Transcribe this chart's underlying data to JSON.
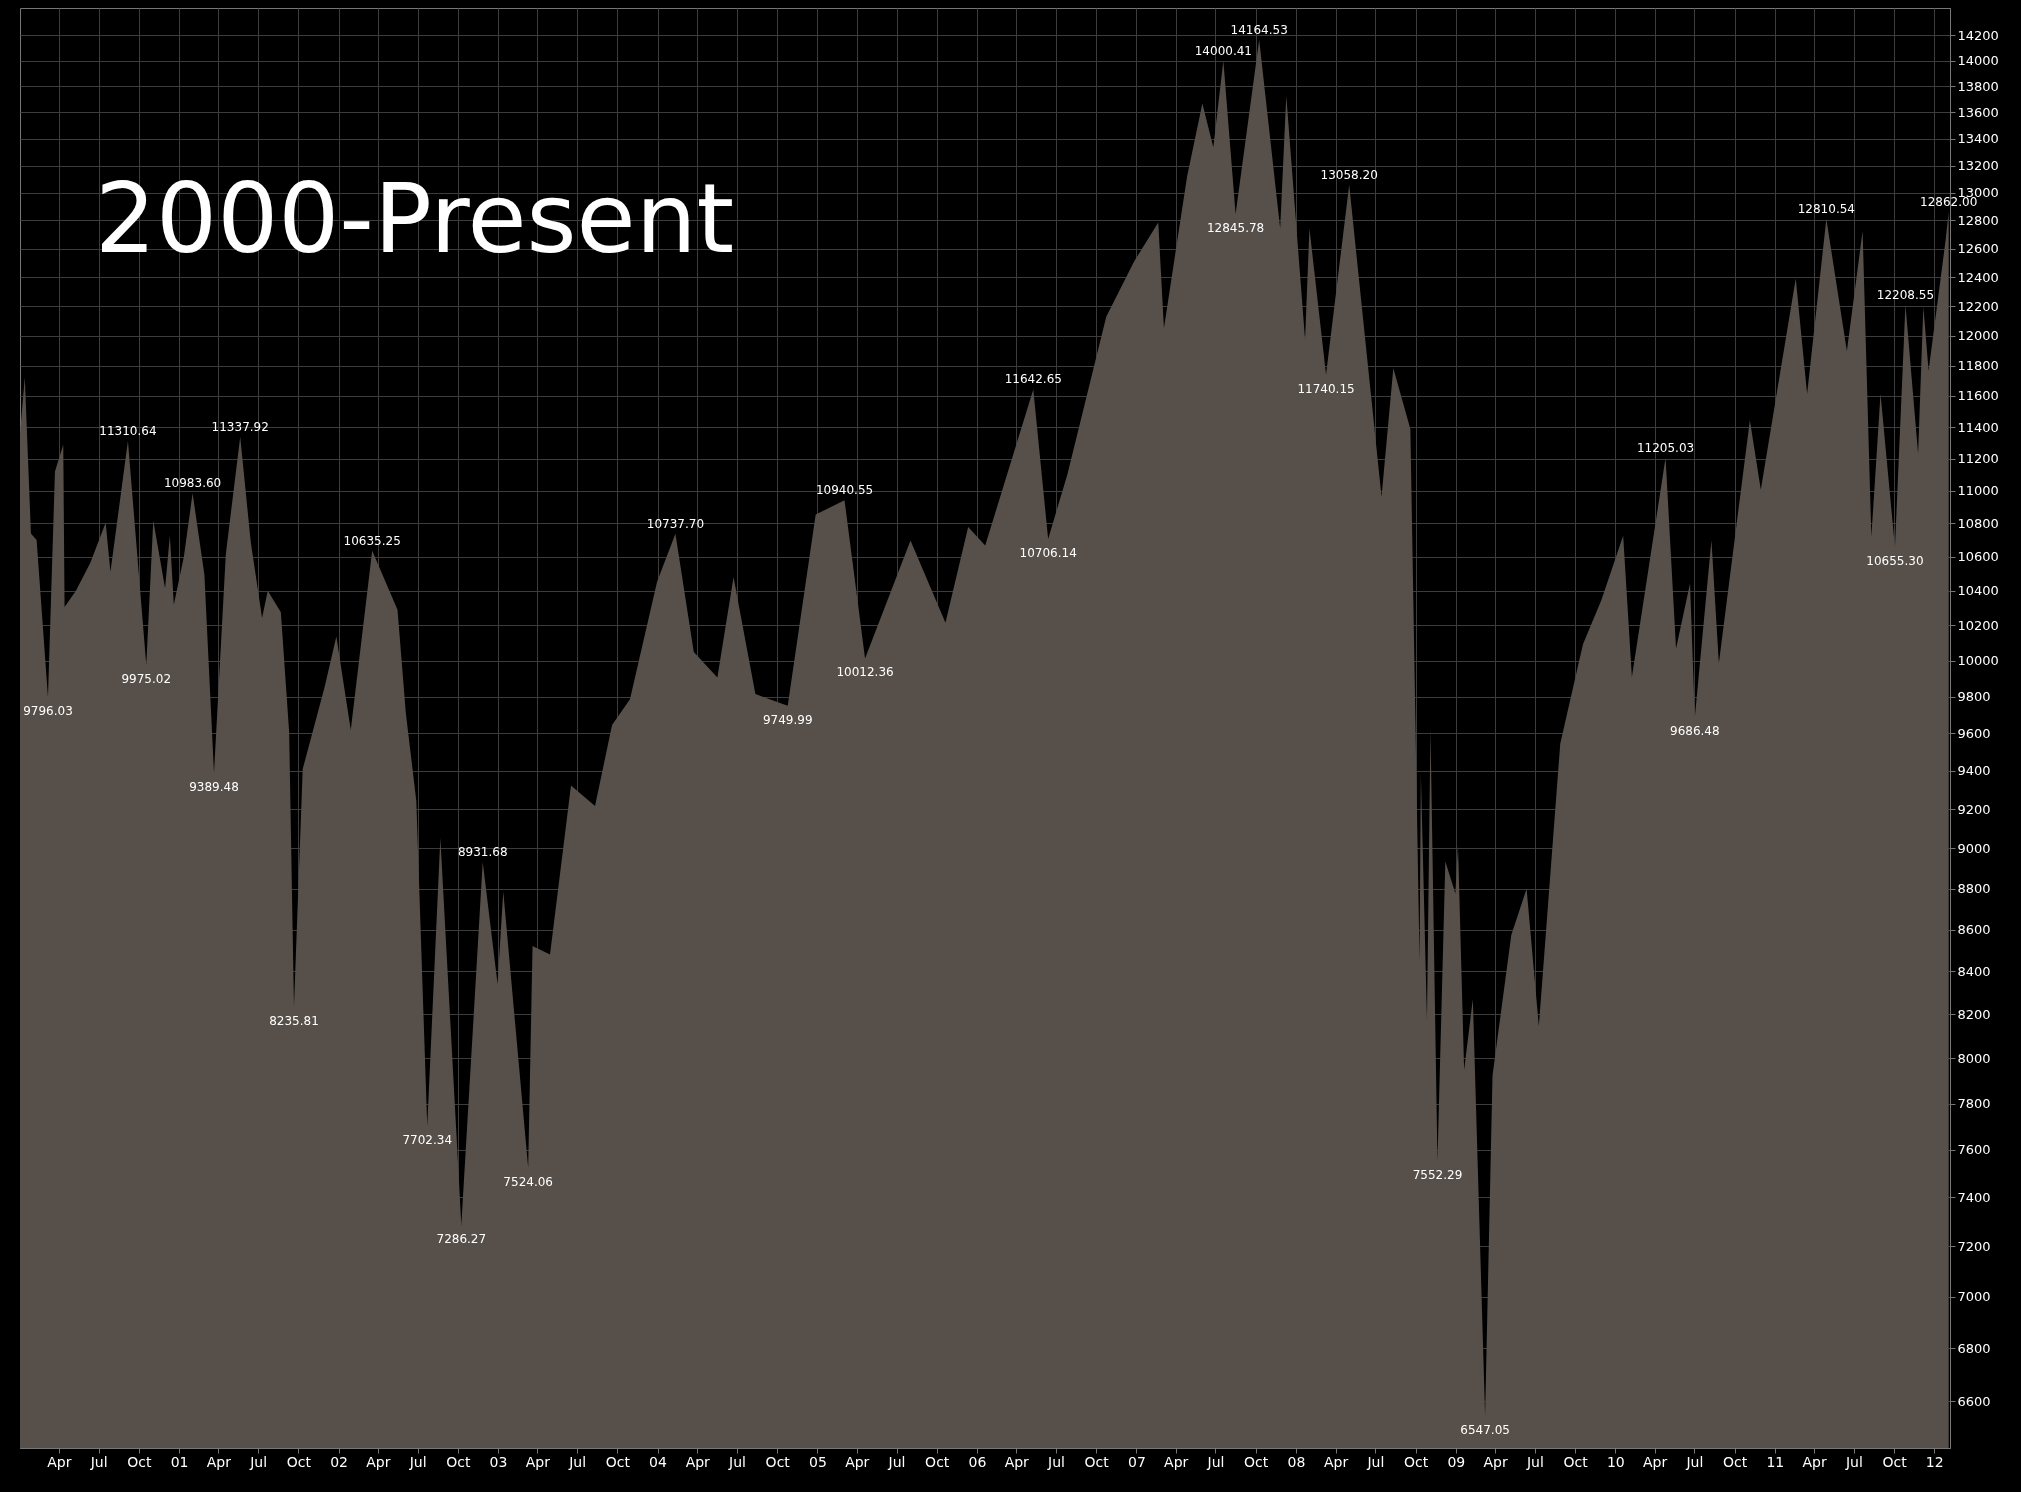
{
  "chart_data": {
    "type": "area",
    "title": "2000-Present",
    "x": [
      "2000-01-03",
      "2000-01-14",
      "2000-01-28",
      "2000-02-10",
      "2000-03-07",
      "2000-03-23",
      "2000-04-11",
      "2000-04-14",
      "2000-05-10",
      "2000-06-12",
      "2000-07-17",
      "2000-07-28",
      "2000-09-06",
      "2000-10-18",
      "2000-11-03",
      "2000-11-30",
      "2000-12-11",
      "2000-12-20",
      "2001-01-12",
      "2001-02-01",
      "2001-02-28",
      "2001-03-22",
      "2001-04-18",
      "2001-05-21",
      "2001-06-14",
      "2001-07-10",
      "2001-07-23",
      "2001-08-22",
      "2001-09-10",
      "2001-09-21",
      "2001-10-11",
      "2001-11-30",
      "2001-12-27",
      "2002-01-29",
      "2002-03-19",
      "2002-05-16",
      "2002-06-04",
      "2002-06-28",
      "2002-07-23",
      "2002-08-22",
      "2002-09-30",
      "2002-10-09",
      "2002-11-27",
      "2002-12-31",
      "2003-01-13",
      "2003-03-11",
      "2003-03-21",
      "2003-04-30",
      "2003-06-17",
      "2003-08-11",
      "2003-09-19",
      "2003-10-30",
      "2003-12-31",
      "2004-02-11",
      "2004-03-24",
      "2004-05-17",
      "2004-06-23",
      "2004-08-12",
      "2004-10-25",
      "2004-12-28",
      "2005-03-04",
      "2005-04-20",
      "2005-08-02",
      "2005-10-21",
      "2005-12-12",
      "2006-01-20",
      "2006-05-10",
      "2006-06-13",
      "2006-07-27",
      "2006-10-24",
      "2006-12-27",
      "2007-02-20",
      "2007-03-05",
      "2007-04-27",
      "2007-06-01",
      "2007-06-26",
      "2007-07-19",
      "2007-08-16",
      "2007-10-09",
      "2007-11-26",
      "2007-12-10",
      "2008-01-22",
      "2008-02-01",
      "2008-03-10",
      "2008-05-02",
      "2008-07-15",
      "2008-08-11",
      "2008-09-19",
      "2008-10-10",
      "2008-10-13",
      "2008-10-27",
      "2008-11-04",
      "2008-11-20",
      "2008-12-08",
      "2008-12-31",
      "2009-01-06",
      "2009-01-20",
      "2009-02-09",
      "2009-03-09",
      "2009-03-26",
      "2009-05-08",
      "2009-06-12",
      "2009-07-10",
      "2009-08-28",
      "2009-10-19",
      "2009-11-30",
      "2010-01-19",
      "2010-02-08",
      "2010-04-26",
      "2010-05-20",
      "2010-06-21",
      "2010-07-02",
      "2010-08-09",
      "2010-08-26",
      "2010-11-05",
      "2010-11-30",
      "2011-02-18",
      "2011-03-16",
      "2011-04-29",
      "2011-06-15",
      "2011-07-21",
      "2011-08-10",
      "2011-08-31",
      "2011-10-03",
      "2011-10-27",
      "2011-11-25",
      "2011-12-07",
      "2011-12-19",
      "2012-01-27",
      "2012-02-03"
    ],
    "series": [
      {
        "color": "#57504a",
        "values": [
          11357,
          11723,
          10739,
          10700,
          9796.03,
          11119,
          11287,
          10305,
          10400,
          10564,
          10804,
          10511,
          11310.64,
          9975.02,
          10817,
          10414,
          10725,
          10318,
          10600,
          10983.6,
          10495,
          9389.48,
          10615,
          11337.92,
          10690,
          10242,
          10400,
          10275,
          9606,
          8235.81,
          9410,
          9852,
          10136,
          9618,
          10635.25,
          10289,
          9711,
          9243,
          7702.34,
          9053,
          7592,
          7286.27,
          8931.68,
          8341,
          8785,
          7524.06,
          8521,
          8480,
          9323,
          9217,
          9645,
          9786,
          10453,
          10737.7,
          10048,
          9906,
          10479,
          9814,
          9749.99,
          10854,
          10940.55,
          10012.36,
          10697,
          10215,
          10778,
          10667,
          11642.65,
          10706.14,
          11100,
          12127,
          12510,
          12786,
          12050,
          13120,
          13668,
          13337,
          14000.41,
          12845.78,
          14164.53,
          12743,
          13727,
          11971,
          12743,
          11740.15,
          13058.2,
          10962,
          11782,
          11388,
          8451,
          9387,
          8175,
          9625,
          7552.29,
          8934,
          8776,
          9015,
          7949,
          8270,
          6547.05,
          7924,
          8574,
          8799,
          8146,
          9544,
          10092,
          10345,
          10725,
          9908,
          11205.03,
          10068,
          10442,
          9686.48,
          10698,
          9985,
          11444,
          11006,
          12391,
          11613,
          12810.54,
          11897,
          12724,
          10719,
          11614,
          10655.3,
          12208.55,
          11231,
          12196,
          11766,
          12660,
          12862
        ]
      }
    ],
    "annotations": [
      {
        "text": "9796.03",
        "x": "2000-03-07",
        "y": 9796.03
      },
      {
        "text": "11310.64",
        "x": "2000-09-06",
        "y": 11310.64
      },
      {
        "text": "9975.02",
        "x": "2000-10-18",
        "y": 9975.02
      },
      {
        "text": "10983.60",
        "x": "2001-02-01",
        "y": 10983.6
      },
      {
        "text": "9389.48",
        "x": "2001-03-22",
        "y": 9389.48
      },
      {
        "text": "11337.92",
        "x": "2001-05-21",
        "y": 11337.92
      },
      {
        "text": "8235.81",
        "x": "2001-09-21",
        "y": 8235.81
      },
      {
        "text": "10635.25",
        "x": "2002-03-19",
        "y": 10635.25
      },
      {
        "text": "7702.34",
        "x": "2002-07-23",
        "y": 7702.34
      },
      {
        "text": "7286.27",
        "x": "2002-10-09",
        "y": 7286.27
      },
      {
        "text": "8931.68",
        "x": "2002-11-27",
        "y": 8931.68
      },
      {
        "text": "7524.06",
        "x": "2003-03-11",
        "y": 7524.06
      },
      {
        "text": "10737.70",
        "x": "2004-02-11",
        "y": 10737.7
      },
      {
        "text": "9749.99",
        "x": "2004-10-25",
        "y": 9749.99
      },
      {
        "text": "10940.55",
        "x": "2005-03-04",
        "y": 10940.55
      },
      {
        "text": "10012.36",
        "x": "2005-04-20",
        "y": 10012.36
      },
      {
        "text": "11642.65",
        "x": "2006-05-10",
        "y": 11642.65
      },
      {
        "text": "10706.14",
        "x": "2006-06-13",
        "y": 10706.14
      },
      {
        "text": "14000.41",
        "x": "2007-07-19",
        "y": 14000.41
      },
      {
        "text": "12845.78",
        "x": "2007-08-16",
        "y": 12845.78
      },
      {
        "text": "14164.53",
        "x": "2007-10-09",
        "y": 14164.53
      },
      {
        "text": "11740.15",
        "x": "2008-03-10",
        "y": 11740.15
      },
      {
        "text": "13058.20",
        "x": "2008-05-02",
        "y": 13058.2
      },
      {
        "text": "7552.29",
        "x": "2008-11-20",
        "y": 7552.29
      },
      {
        "text": "6547.05",
        "x": "2009-03-09",
        "y": 6547.05
      },
      {
        "text": "11205.03",
        "x": "2010-04-26",
        "y": 11205.03
      },
      {
        "text": "9686.48",
        "x": "2010-07-02",
        "y": 9686.48
      },
      {
        "text": "12810.54",
        "x": "2011-04-29",
        "y": 12810.54
      },
      {
        "text": "10655.30",
        "x": "2011-10-03",
        "y": 10655.3
      },
      {
        "text": "12208.55",
        "x": "2011-10-27",
        "y": 12208.55
      },
      {
        "text": "12862.00",
        "x": "2012-02-03",
        "y": 12862
      }
    ],
    "log": true,
    "grid": true,
    "xlim": [
      "2000-01-03",
      "2012-02-06"
    ],
    "xticks": [
      {
        "value": "2000-04-01",
        "label": "Apr"
      },
      {
        "value": "2000-07-01",
        "label": "Jul"
      },
      {
        "value": "2000-10-01",
        "label": "Oct"
      },
      {
        "value": "2001-01-01",
        "label": "01"
      },
      {
        "value": "2001-04-01",
        "label": "Apr"
      },
      {
        "value": "2001-07-01",
        "label": "Jul"
      },
      {
        "value": "2001-10-01",
        "label": "Oct"
      },
      {
        "value": "2002-01-01",
        "label": "02"
      },
      {
        "value": "2002-04-01",
        "label": "Apr"
      },
      {
        "value": "2002-07-01",
        "label": "Jul"
      },
      {
        "value": "2002-10-01",
        "label": "Oct"
      },
      {
        "value": "2003-01-01",
        "label": "03"
      },
      {
        "value": "2003-04-01",
        "label": "Apr"
      },
      {
        "value": "2003-07-01",
        "label": "Jul"
      },
      {
        "value": "2003-10-01",
        "label": "Oct"
      },
      {
        "value": "2004-01-01",
        "label": "04"
      },
      {
        "value": "2004-04-01",
        "label": "Apr"
      },
      {
        "value": "2004-07-01",
        "label": "Jul"
      },
      {
        "value": "2004-10-01",
        "label": "Oct"
      },
      {
        "value": "2005-01-01",
        "label": "05"
      },
      {
        "value": "2005-04-01",
        "label": "Apr"
      },
      {
        "value": "2005-07-01",
        "label": "Jul"
      },
      {
        "value": "2005-10-01",
        "label": "Oct"
      },
      {
        "value": "2006-01-01",
        "label": "06"
      },
      {
        "value": "2006-04-01",
        "label": "Apr"
      },
      {
        "value": "2006-07-01",
        "label": "Jul"
      },
      {
        "value": "2006-10-01",
        "label": "Oct"
      },
      {
        "value": "2007-01-01",
        "label": "07"
      },
      {
        "value": "2007-04-01",
        "label": "Apr"
      },
      {
        "value": "2007-07-01",
        "label": "Jul"
      },
      {
        "value": "2007-10-01",
        "label": "Oct"
      },
      {
        "value": "2008-01-01",
        "label": "08"
      },
      {
        "value": "2008-04-01",
        "label": "Apr"
      },
      {
        "value": "2008-07-01",
        "label": "Jul"
      },
      {
        "value": "2008-10-01",
        "label": "Oct"
      },
      {
        "value": "2009-01-01",
        "label": "09"
      },
      {
        "value": "2009-04-01",
        "label": "Apr"
      },
      {
        "value": "2009-07-01",
        "label": "Jul"
      },
      {
        "value": "2009-10-01",
        "label": "Oct"
      },
      {
        "value": "2010-01-01",
        "label": "10"
      },
      {
        "value": "2010-04-01",
        "label": "Apr"
      },
      {
        "value": "2010-07-01",
        "label": "Jul"
      },
      {
        "value": "2010-10-01",
        "label": "Oct"
      },
      {
        "value": "2011-01-01",
        "label": "11"
      },
      {
        "value": "2011-04-01",
        "label": "Apr"
      },
      {
        "value": "2011-07-01",
        "label": "Jul"
      },
      {
        "value": "2011-10-01",
        "label": "Oct"
      },
      {
        "value": "2012-01-01",
        "label": "12"
      }
    ],
    "ylim": [
      6430,
      14420
    ],
    "yticks": [
      6600,
      6800,
      7000,
      7200,
      7400,
      7600,
      7800,
      8000,
      8200,
      8400,
      8600,
      8800,
      9000,
      9200,
      9400,
      9600,
      9800,
      10000,
      10200,
      10400,
      10600,
      10800,
      11000,
      11200,
      11400,
      11600,
      11800,
      12000,
      12200,
      12400,
      12600,
      12800,
      13000,
      13200,
      13400,
      13600,
      13800,
      14000,
      14200
    ]
  }
}
